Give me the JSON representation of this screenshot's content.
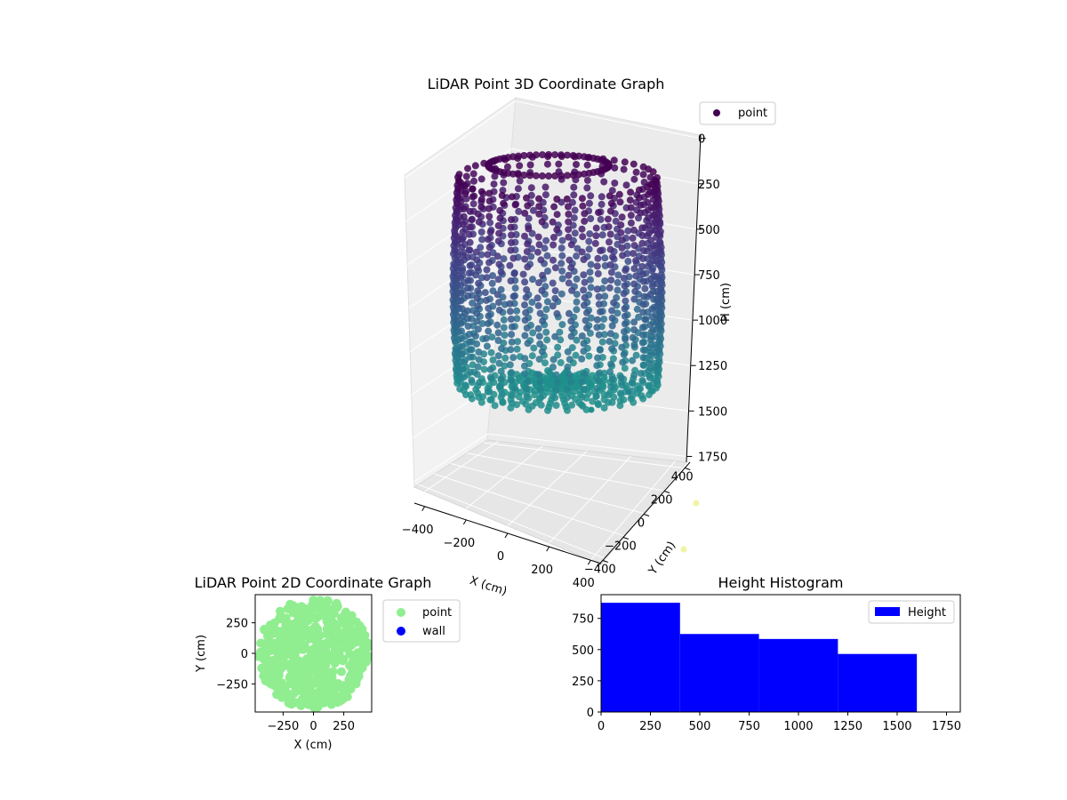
{
  "chart_data": [
    {
      "type": "scatter3d",
      "title": "LiDAR Point 3D Coordinate Graph",
      "xlabel": "X (cm)",
      "ylabel": "Y (cm)",
      "zlabel": "H (cm)",
      "x_ticks": [
        "−400",
        "−200",
        "0",
        "200",
        "400"
      ],
      "y_ticks": [
        "−400",
        "−200",
        "0",
        "200",
        "400"
      ],
      "z_ticks": [
        "0",
        "250",
        "500",
        "750",
        "1000",
        "1250",
        "1500",
        "1750"
      ],
      "xlim": [
        -450,
        450
      ],
      "ylim": [
        -450,
        450
      ],
      "zlim": [
        1800,
        0
      ],
      "z_inverted": true,
      "colormap": "viridis",
      "legend": [
        "point"
      ],
      "legend_position": "top-right",
      "shape": "hollow cylinder of points with floor, radius ~450 cm, heights ~0 to ~1600 cm",
      "colors": {
        "point_legend": "#440154"
      }
    },
    {
      "type": "scatter",
      "title": "LiDAR Point 2D Coordinate Graph",
      "xlabel": "X (cm)",
      "ylabel": "Y (cm)",
      "x_ticks": [
        "−250",
        "0",
        "250"
      ],
      "y_ticks": [
        "250",
        "0",
        "−250"
      ],
      "xlim": [
        -480,
        480
      ],
      "ylim": [
        -480,
        480
      ],
      "legend": [
        {
          "name": "point",
          "color": "#90ee90"
        },
        {
          "name": "wall",
          "color": "#0000ff"
        }
      ],
      "legend_position": "outside-right",
      "shape": "filled disc of points, radius ~450 cm"
    },
    {
      "type": "bar",
      "title": "Height Histogram",
      "x_ticks": [
        "0",
        "250",
        "500",
        "750",
        "1000",
        "1250",
        "1500",
        "1750"
      ],
      "y_ticks": [
        "0",
        "250",
        "500",
        "750"
      ],
      "xlim": [
        0,
        1820
      ],
      "ylim": [
        0,
        940
      ],
      "bin_edges": [
        0,
        400,
        800,
        1200,
        1600
      ],
      "values": [
        875,
        625,
        585,
        465
      ],
      "legend": [
        {
          "name": "Height",
          "color": "#0000ff"
        }
      ],
      "legend_position": "top-right"
    }
  ]
}
